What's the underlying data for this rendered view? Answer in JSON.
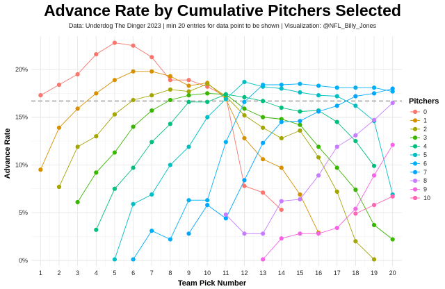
{
  "chart_data": {
    "type": "line",
    "title": "Advance Rate by Cumulative Pitchers Selected",
    "subtitle": "Data: Underdog The Dinger 2023 | min 20 entries for data point to be shown |  Visualization: @NFL_Billy_Jones",
    "xlabel": "Team Pick Number",
    "ylabel": "Advance Rate",
    "xlim": [
      0.5,
      20.5
    ],
    "ylim": [
      -0.6,
      23.5
    ],
    "x_ticks": [
      1,
      2,
      3,
      4,
      5,
      6,
      7,
      8,
      9,
      10,
      11,
      12,
      13,
      14,
      15,
      16,
      17,
      18,
      19,
      20
    ],
    "y_ticks": [
      {
        "value": 0,
        "label": "0%"
      },
      {
        "value": 5,
        "label": "5%"
      },
      {
        "value": 10,
        "label": "10%"
      },
      {
        "value": 15,
        "label": "15%"
      },
      {
        "value": 20,
        "label": "20%"
      }
    ],
    "reference_line": {
      "value": 16.7,
      "style": "dashed"
    },
    "legend_title": "Pitchers",
    "legend_position": "right",
    "series": [
      {
        "name": "0",
        "color": "#F8766D",
        "points": [
          [
            1,
            17.3
          ],
          [
            2,
            18.4
          ],
          [
            3,
            19.5
          ],
          [
            4,
            21.6
          ],
          [
            5,
            22.8
          ],
          [
            6,
            22.5
          ],
          [
            7,
            21.3
          ],
          [
            8,
            18.9
          ],
          [
            9,
            18.9
          ],
          [
            10,
            18.2
          ],
          [
            11,
            17.2
          ],
          [
            12,
            7.8
          ],
          [
            13,
            7.1
          ],
          [
            14,
            5.3
          ]
        ]
      },
      {
        "name": "1",
        "color": "#D89000",
        "points": [
          [
            1,
            9.5
          ],
          [
            2,
            13.9
          ],
          [
            3,
            15.9
          ],
          [
            4,
            17.5
          ],
          [
            5,
            18.9
          ],
          [
            6,
            19.8
          ],
          [
            7,
            19.8
          ],
          [
            8,
            19.3
          ],
          [
            9,
            18.3
          ],
          [
            10,
            18.6
          ],
          [
            11,
            16.9
          ],
          [
            12,
            12.8
          ],
          [
            13,
            10.6
          ],
          [
            14,
            9.7
          ],
          [
            15,
            6.9
          ],
          [
            16,
            2.9
          ]
        ]
      },
      {
        "name": "2",
        "color": "#A3A500",
        "points": [
          [
            2,
            7.7
          ],
          [
            3,
            11.9
          ],
          [
            4,
            13.0
          ],
          [
            5,
            15.3
          ],
          [
            6,
            16.8
          ],
          [
            7,
            17.3
          ],
          [
            8,
            17.9
          ],
          [
            9,
            17.7
          ],
          [
            10,
            18.5
          ],
          [
            11,
            17.2
          ],
          [
            12,
            15.2
          ],
          [
            13,
            13.9
          ],
          [
            14,
            12.8
          ],
          [
            15,
            13.6
          ],
          [
            16,
            10.8
          ],
          [
            17,
            7.2
          ],
          [
            18,
            2.0
          ],
          [
            19,
            0.1
          ]
        ]
      },
      {
        "name": "3",
        "color": "#39B600",
        "points": [
          [
            3,
            6.1
          ],
          [
            4,
            9.2
          ],
          [
            5,
            11.3
          ],
          [
            6,
            14.0
          ],
          [
            7,
            15.7
          ],
          [
            8,
            16.8
          ],
          [
            9,
            17.3
          ],
          [
            10,
            17.5
          ],
          [
            11,
            17.4
          ],
          [
            12,
            15.9
          ],
          [
            13,
            15.0
          ],
          [
            14,
            14.8
          ],
          [
            15,
            14.2
          ],
          [
            16,
            11.9
          ],
          [
            17,
            9.7
          ],
          [
            18,
            7.4
          ],
          [
            19,
            3.7
          ],
          [
            20,
            2.2
          ]
        ]
      },
      {
        "name": "4",
        "color": "#00BF7D",
        "points": [
          [
            4,
            3.2
          ],
          [
            5,
            7.5
          ],
          [
            6,
            9.7
          ],
          [
            7,
            12.4
          ],
          [
            8,
            14.3
          ],
          [
            9,
            16.6
          ],
          [
            10,
            16.6
          ],
          [
            11,
            17.4
          ],
          [
            12,
            17.1
          ],
          [
            13,
            16.7
          ],
          [
            14,
            16.0
          ],
          [
            15,
            15.6
          ],
          [
            16,
            15.7
          ],
          [
            17,
            14.5
          ],
          [
            18,
            12.5
          ],
          [
            19,
            9.9
          ]
        ]
      },
      {
        "name": "5",
        "color": "#00BFC4",
        "points": [
          [
            5,
            0.1
          ],
          [
            6,
            5.9
          ],
          [
            7,
            6.9
          ],
          [
            8,
            10.0
          ],
          [
            9,
            11.9
          ],
          [
            10,
            15.0
          ],
          [
            11,
            16.9
          ],
          [
            12,
            18.7
          ],
          [
            13,
            18.2
          ],
          [
            14,
            18.0
          ],
          [
            15,
            17.6
          ],
          [
            16,
            17.3
          ],
          [
            17,
            17.2
          ],
          [
            18,
            16.2
          ],
          [
            19,
            14.6
          ],
          [
            20,
            6.9
          ]
        ]
      },
      {
        "name": "6",
        "color": "#00B0F6",
        "points": [
          [
            6,
            0.1
          ],
          [
            7,
            3.1
          ],
          [
            8,
            2.2
          ],
          [
            9,
            6.3
          ],
          [
            10,
            6.3
          ],
          [
            11,
            12.4
          ],
          [
            12,
            16.6
          ],
          [
            13,
            18.4
          ],
          [
            14,
            18.4
          ],
          [
            15,
            18.5
          ],
          [
            16,
            18.3
          ],
          [
            17,
            18.1
          ],
          [
            18,
            18.1
          ],
          [
            19,
            18.1
          ],
          [
            20,
            17.7
          ]
        ]
      },
      {
        "name": "7",
        "color": "#00A5FF",
        "points": [
          [
            9,
            2.8
          ],
          [
            10,
            5.8
          ],
          [
            11,
            4.4
          ],
          [
            12,
            8.4
          ],
          [
            13,
            12.3
          ],
          [
            14,
            14.5
          ],
          [
            15,
            14.6
          ],
          [
            16,
            15.6
          ],
          [
            17,
            16.2
          ],
          [
            18,
            17.2
          ],
          [
            19,
            17.5
          ],
          [
            20,
            18.0
          ]
        ]
      },
      {
        "name": "8",
        "color": "#C77CFF",
        "points": [
          [
            11,
            4.8
          ],
          [
            12,
            2.8
          ],
          [
            13,
            2.8
          ],
          [
            14,
            6.2
          ],
          [
            15,
            6.4
          ],
          [
            16,
            8.9
          ],
          [
            17,
            11.9
          ],
          [
            18,
            13.1
          ],
          [
            19,
            14.7
          ],
          [
            20,
            16.5
          ]
        ]
      },
      {
        "name": "9",
        "color": "#F564E3",
        "points": [
          [
            13,
            0.1
          ],
          [
            14,
            2.3
          ],
          [
            15,
            2.8
          ],
          [
            16,
            2.8
          ],
          [
            17,
            3.4
          ],
          [
            18,
            5.4
          ],
          [
            19,
            8.9
          ],
          [
            20,
            12.1
          ]
        ]
      },
      {
        "name": "10",
        "color": "#FF64B0",
        "points": [
          [
            18,
            4.9
          ],
          [
            19,
            5.8
          ],
          [
            20,
            6.7
          ]
        ]
      }
    ]
  }
}
